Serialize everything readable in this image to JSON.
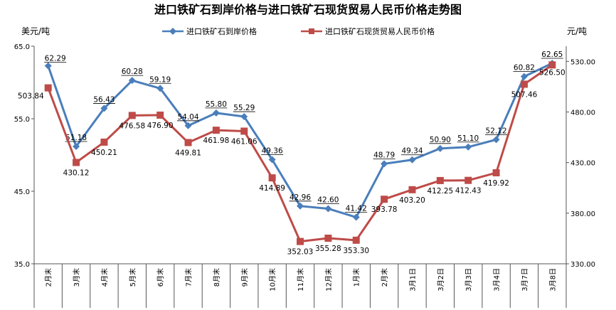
{
  "chart_data": {
    "type": "line",
    "title": "进口铁矿石到岸价格与进口铁矿石现货贸易人民币价格走势图",
    "left_axis_unit": "美元/吨",
    "right_axis_unit": "元/吨",
    "legend_placement": "top-center",
    "grid": false,
    "categories": [
      "2月末",
      "3月末",
      "4月末",
      "5月末",
      "6月末",
      "7月末",
      "8月末",
      "9月末",
      "10月末",
      "11月末",
      "12月末",
      "1月末",
      "2月末",
      "3月1日",
      "3月2日",
      "3月3日",
      "3月4日",
      "3月7日",
      "3月8日"
    ],
    "left_axis": {
      "min": 35,
      "max": 65,
      "ticks": [
        "35.0",
        "45.0",
        "55.0",
        "65.0"
      ]
    },
    "right_axis": {
      "min": 330,
      "max": 545,
      "ticks": [
        "330.00",
        "380.00",
        "430.00",
        "480.00",
        "530.00"
      ]
    },
    "series": [
      {
        "name": "进口铁矿石到岸价格",
        "axis": "left",
        "color": "#4A7EBB",
        "marker": "diamond",
        "values": [
          62.29,
          51.18,
          56.43,
          60.28,
          59.19,
          54.04,
          55.8,
          55.29,
          49.36,
          42.96,
          42.6,
          41.42,
          48.79,
          49.34,
          50.9,
          51.1,
          52.12,
          60.82,
          62.65
        ],
        "labels": [
          "62.29",
          "51.18",
          "56.43",
          "60.28",
          "59.19",
          "54.04",
          "55.80",
          "55.29",
          "49.36",
          "42.96",
          "42.60",
          "41.42",
          "48.79",
          "49.34",
          "50.90",
          "51.10",
          "52.12",
          "60.82",
          "62.65"
        ]
      },
      {
        "name": "进口铁矿石现货贸易人民币价格",
        "axis": "right",
        "color": "#BE4B48",
        "marker": "square",
        "values": [
          503.84,
          430.12,
          450.21,
          476.58,
          476.9,
          449.81,
          461.98,
          461.06,
          414.89,
          352.03,
          355.28,
          353.3,
          393.78,
          403.2,
          412.25,
          412.43,
          419.92,
          507.46,
          526.5
        ],
        "labels": [
          "503.84",
          "430.12",
          "450.21",
          "476.58",
          "476.90",
          "449.81",
          "461.98",
          "461.06",
          "414.89",
          "352.03",
          "355.28",
          "353.30",
          "393.78",
          "403.20",
          "412.25",
          "412.43",
          "419.92",
          "507.46",
          "526.50"
        ]
      }
    ]
  }
}
